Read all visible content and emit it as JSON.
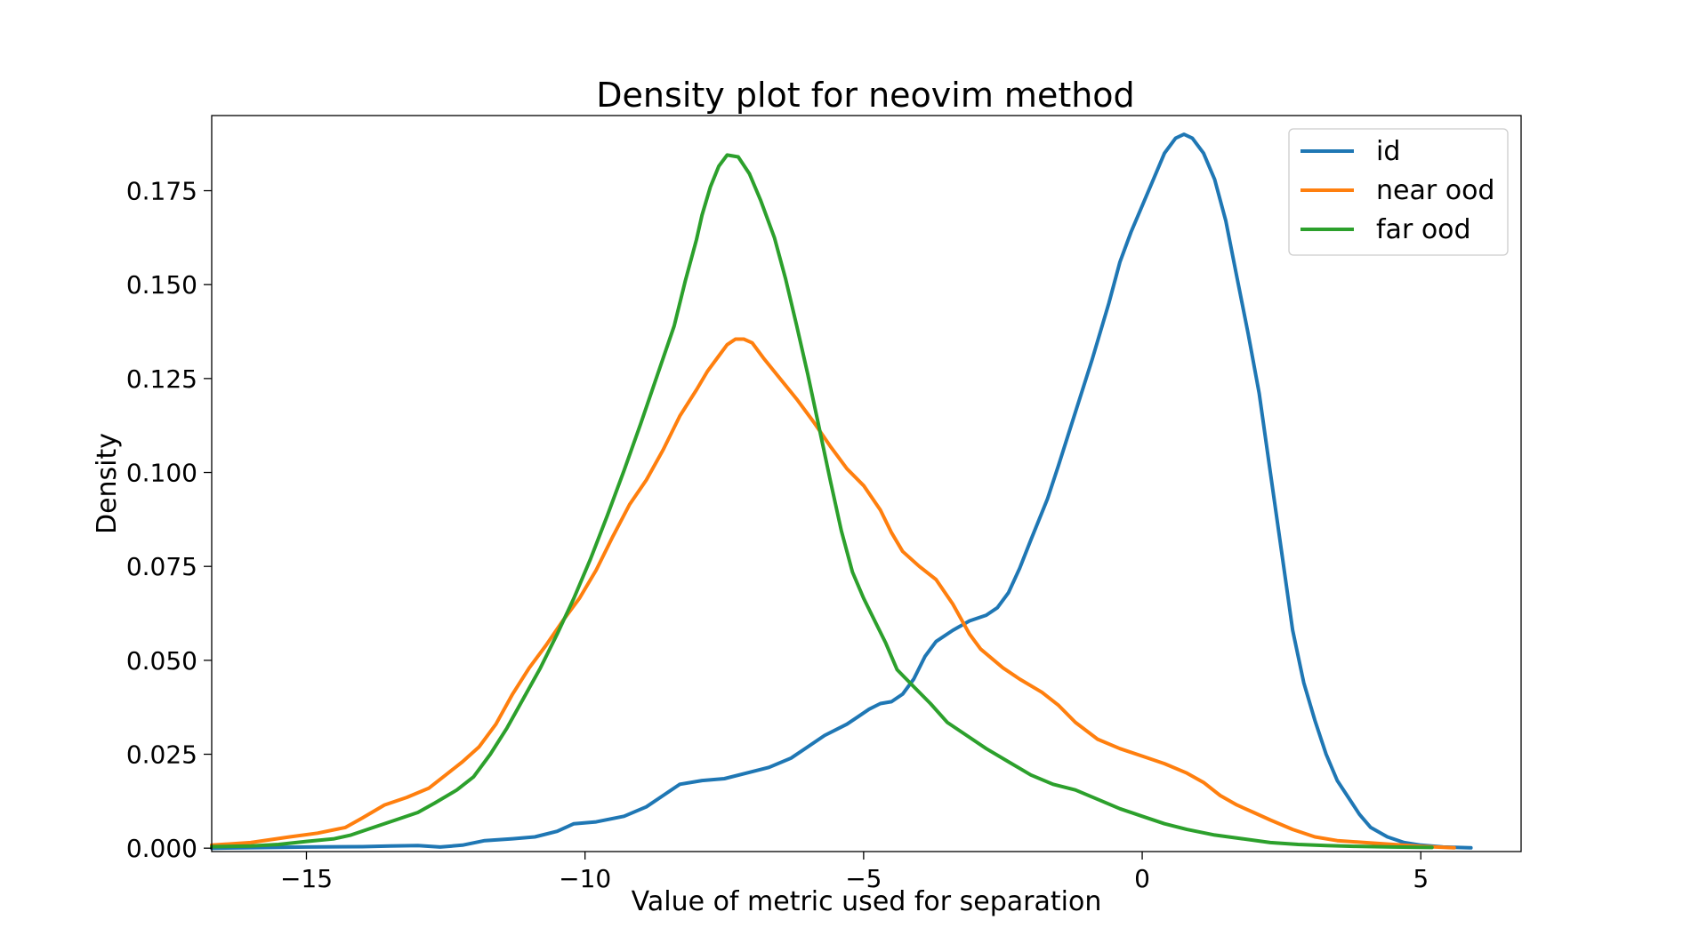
{
  "chart_data": {
    "type": "line",
    "title": "Density plot for neovim method",
    "xlabel": "Value of metric used for separation",
    "ylabel": "Density",
    "xlim": [
      -16.7,
      6.8
    ],
    "ylim": [
      -0.0009,
      0.195
    ],
    "x_ticks": [
      {
        "value": -15,
        "label": "−15"
      },
      {
        "value": -10,
        "label": "−10"
      },
      {
        "value": -5,
        "label": "−5"
      },
      {
        "value": 0,
        "label": "0"
      },
      {
        "value": 5,
        "label": "5"
      }
    ],
    "y_ticks": [
      {
        "value": 0.0,
        "label": "0.000"
      },
      {
        "value": 0.025,
        "label": "0.025"
      },
      {
        "value": 0.05,
        "label": "0.050"
      },
      {
        "value": 0.075,
        "label": "0.075"
      },
      {
        "value": 0.1,
        "label": "0.100"
      },
      {
        "value": 0.125,
        "label": "0.125"
      },
      {
        "value": 0.15,
        "label": "0.150"
      },
      {
        "value": 0.175,
        "label": "0.175"
      }
    ],
    "grid": false,
    "legend_position": "top-right",
    "series": [
      {
        "name": "id",
        "color": "#1f77b4",
        "points": [
          [
            -16.7,
            0.0
          ],
          [
            -15.0,
            0.0003
          ],
          [
            -14.0,
            0.0004
          ],
          [
            -13.5,
            0.0006
          ],
          [
            -13.0,
            0.0007
          ],
          [
            -12.6,
            0.0003
          ],
          [
            -12.2,
            0.0008
          ],
          [
            -11.8,
            0.002
          ],
          [
            -11.3,
            0.0025
          ],
          [
            -10.9,
            0.003
          ],
          [
            -10.5,
            0.0045
          ],
          [
            -10.2,
            0.0065
          ],
          [
            -9.8,
            0.007
          ],
          [
            -9.3,
            0.0085
          ],
          [
            -8.9,
            0.011
          ],
          [
            -8.6,
            0.014
          ],
          [
            -8.3,
            0.017
          ],
          [
            -7.9,
            0.018
          ],
          [
            -7.5,
            0.0185
          ],
          [
            -7.1,
            0.02
          ],
          [
            -6.7,
            0.0215
          ],
          [
            -6.3,
            0.024
          ],
          [
            -6.0,
            0.027
          ],
          [
            -5.7,
            0.03
          ],
          [
            -5.3,
            0.033
          ],
          [
            -5.1,
            0.035
          ],
          [
            -4.9,
            0.037
          ],
          [
            -4.7,
            0.0385
          ],
          [
            -4.5,
            0.039
          ],
          [
            -4.3,
            0.041
          ],
          [
            -4.1,
            0.045
          ],
          [
            -3.9,
            0.051
          ],
          [
            -3.7,
            0.055
          ],
          [
            -3.4,
            0.058
          ],
          [
            -3.1,
            0.0605
          ],
          [
            -2.8,
            0.062
          ],
          [
            -2.6,
            0.064
          ],
          [
            -2.4,
            0.068
          ],
          [
            -2.2,
            0.0745
          ],
          [
            -2.0,
            0.082
          ],
          [
            -1.7,
            0.093
          ],
          [
            -1.5,
            0.102
          ],
          [
            -1.2,
            0.116
          ],
          [
            -0.9,
            0.13
          ],
          [
            -0.6,
            0.145
          ],
          [
            -0.4,
            0.156
          ],
          [
            -0.2,
            0.164
          ],
          [
            0.0,
            0.171
          ],
          [
            0.2,
            0.178
          ],
          [
            0.4,
            0.185
          ],
          [
            0.6,
            0.189
          ],
          [
            0.75,
            0.19
          ],
          [
            0.9,
            0.189
          ],
          [
            1.1,
            0.185
          ],
          [
            1.3,
            0.178
          ],
          [
            1.5,
            0.167
          ],
          [
            1.7,
            0.152
          ],
          [
            1.9,
            0.137
          ],
          [
            2.1,
            0.121
          ],
          [
            2.3,
            0.1
          ],
          [
            2.5,
            0.079
          ],
          [
            2.7,
            0.058
          ],
          [
            2.9,
            0.044
          ],
          [
            3.1,
            0.034
          ],
          [
            3.3,
            0.025
          ],
          [
            3.5,
            0.018
          ],
          [
            3.7,
            0.0135
          ],
          [
            3.9,
            0.009
          ],
          [
            4.1,
            0.0055
          ],
          [
            4.4,
            0.003
          ],
          [
            4.7,
            0.0015
          ],
          [
            5.0,
            0.0008
          ],
          [
            5.4,
            0.0003
          ],
          [
            5.9,
            0.0001
          ]
        ]
      },
      {
        "name": "near ood",
        "color": "#ff7f0e",
        "points": [
          [
            -16.7,
            0.0008
          ],
          [
            -16.0,
            0.0015
          ],
          [
            -15.3,
            0.003
          ],
          [
            -14.8,
            0.004
          ],
          [
            -14.3,
            0.0055
          ],
          [
            -14.0,
            0.008
          ],
          [
            -13.6,
            0.0115
          ],
          [
            -13.2,
            0.0135
          ],
          [
            -12.8,
            0.016
          ],
          [
            -12.5,
            0.0195
          ],
          [
            -12.2,
            0.023
          ],
          [
            -11.9,
            0.027
          ],
          [
            -11.6,
            0.033
          ],
          [
            -11.3,
            0.041
          ],
          [
            -11.0,
            0.048
          ],
          [
            -10.7,
            0.054
          ],
          [
            -10.4,
            0.0605
          ],
          [
            -10.1,
            0.0665
          ],
          [
            -9.8,
            0.074
          ],
          [
            -9.5,
            0.083
          ],
          [
            -9.2,
            0.0915
          ],
          [
            -8.9,
            0.098
          ],
          [
            -8.6,
            0.106
          ],
          [
            -8.3,
            0.115
          ],
          [
            -8.0,
            0.122
          ],
          [
            -7.8,
            0.127
          ],
          [
            -7.6,
            0.131
          ],
          [
            -7.45,
            0.134
          ],
          [
            -7.3,
            0.1355
          ],
          [
            -7.15,
            0.1355
          ],
          [
            -7.0,
            0.1345
          ],
          [
            -6.8,
            0.1305
          ],
          [
            -6.5,
            0.125
          ],
          [
            -6.2,
            0.1195
          ],
          [
            -5.9,
            0.1135
          ],
          [
            -5.6,
            0.107
          ],
          [
            -5.3,
            0.101
          ],
          [
            -5.0,
            0.0965
          ],
          [
            -4.7,
            0.09
          ],
          [
            -4.5,
            0.084
          ],
          [
            -4.3,
            0.079
          ],
          [
            -4.0,
            0.075
          ],
          [
            -3.7,
            0.0715
          ],
          [
            -3.4,
            0.065
          ],
          [
            -3.1,
            0.057
          ],
          [
            -2.9,
            0.053
          ],
          [
            -2.5,
            0.048
          ],
          [
            -2.2,
            0.045
          ],
          [
            -1.8,
            0.0415
          ],
          [
            -1.5,
            0.038
          ],
          [
            -1.2,
            0.0335
          ],
          [
            -0.8,
            0.029
          ],
          [
            -0.4,
            0.0265
          ],
          [
            0.0,
            0.0245
          ],
          [
            0.4,
            0.0225
          ],
          [
            0.8,
            0.02
          ],
          [
            1.1,
            0.0175
          ],
          [
            1.4,
            0.014
          ],
          [
            1.7,
            0.0115
          ],
          [
            2.0,
            0.0095
          ],
          [
            2.3,
            0.0075
          ],
          [
            2.7,
            0.005
          ],
          [
            3.1,
            0.003
          ],
          [
            3.5,
            0.002
          ],
          [
            4.0,
            0.0015
          ],
          [
            4.5,
            0.001
          ],
          [
            5.0,
            0.0005
          ],
          [
            5.6,
            0.0001
          ]
        ]
      },
      {
        "name": "far ood",
        "color": "#2ca02c",
        "points": [
          [
            -16.7,
            0.0004
          ],
          [
            -16.0,
            0.0006
          ],
          [
            -15.5,
            0.001
          ],
          [
            -15.0,
            0.0018
          ],
          [
            -14.5,
            0.0025
          ],
          [
            -14.2,
            0.0035
          ],
          [
            -13.8,
            0.0055
          ],
          [
            -13.4,
            0.0075
          ],
          [
            -13.0,
            0.0095
          ],
          [
            -12.7,
            0.012
          ],
          [
            -12.3,
            0.0155
          ],
          [
            -12.0,
            0.019
          ],
          [
            -11.7,
            0.025
          ],
          [
            -11.4,
            0.032
          ],
          [
            -11.1,
            0.04
          ],
          [
            -10.8,
            0.048
          ],
          [
            -10.5,
            0.057
          ],
          [
            -10.2,
            0.0665
          ],
          [
            -9.9,
            0.077
          ],
          [
            -9.6,
            0.0885
          ],
          [
            -9.3,
            0.1005
          ],
          [
            -9.0,
            0.113
          ],
          [
            -8.7,
            0.126
          ],
          [
            -8.4,
            0.139
          ],
          [
            -8.2,
            0.151
          ],
          [
            -8.0,
            0.162
          ],
          [
            -7.9,
            0.1685
          ],
          [
            -7.75,
            0.176
          ],
          [
            -7.6,
            0.1815
          ],
          [
            -7.45,
            0.1845
          ],
          [
            -7.25,
            0.184
          ],
          [
            -7.05,
            0.1795
          ],
          [
            -6.85,
            0.1725
          ],
          [
            -6.6,
            0.1625
          ],
          [
            -6.4,
            0.1515
          ],
          [
            -6.2,
            0.139
          ],
          [
            -6.0,
            0.126
          ],
          [
            -5.8,
            0.112
          ],
          [
            -5.6,
            0.098
          ],
          [
            -5.4,
            0.0845
          ],
          [
            -5.2,
            0.0735
          ],
          [
            -5.0,
            0.0665
          ],
          [
            -4.8,
            0.0605
          ],
          [
            -4.6,
            0.0545
          ],
          [
            -4.4,
            0.0475
          ],
          [
            -4.1,
            0.043
          ],
          [
            -3.8,
            0.0385
          ],
          [
            -3.5,
            0.0335
          ],
          [
            -3.1,
            0.0295
          ],
          [
            -2.8,
            0.0265
          ],
          [
            -2.4,
            0.023
          ],
          [
            -2.0,
            0.0195
          ],
          [
            -1.6,
            0.017
          ],
          [
            -1.2,
            0.0155
          ],
          [
            -0.8,
            0.013
          ],
          [
            -0.4,
            0.0105
          ],
          [
            0.0,
            0.0085
          ],
          [
            0.4,
            0.0065
          ],
          [
            0.8,
            0.005
          ],
          [
            1.3,
            0.0035
          ],
          [
            1.8,
            0.0025
          ],
          [
            2.3,
            0.0015
          ],
          [
            2.8,
            0.001
          ],
          [
            3.3,
            0.0007
          ],
          [
            3.8,
            0.0005
          ],
          [
            4.5,
            0.0003
          ],
          [
            5.2,
            0.0002
          ]
        ]
      }
    ]
  }
}
